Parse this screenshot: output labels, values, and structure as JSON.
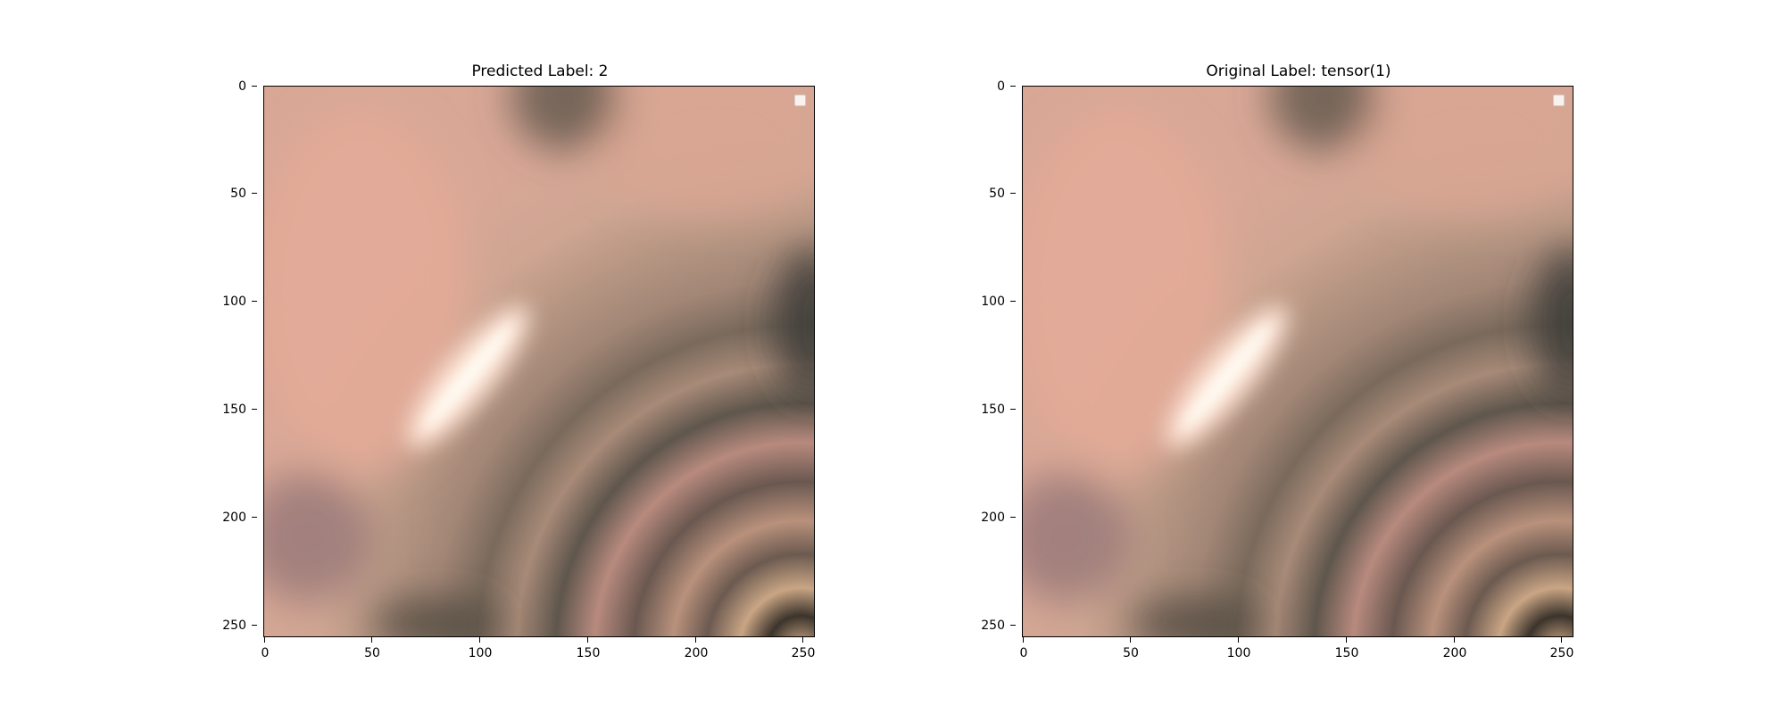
{
  "figure": {
    "panels": [
      {
        "title": "Predicted Label: 2",
        "x_ticks": [
          "0",
          "50",
          "100",
          "150",
          "200",
          "250"
        ],
        "y_ticks": [
          "0",
          "50",
          "100",
          "150",
          "200",
          "250"
        ],
        "legend": "empty"
      },
      {
        "title": "Original Label: tensor(1)",
        "x_ticks": [
          "0",
          "50",
          "100",
          "150",
          "200",
          "250"
        ],
        "y_ticks": [
          "0",
          "50",
          "100",
          "150",
          "200",
          "250"
        ],
        "legend": "empty"
      }
    ],
    "image_description_colors": {
      "skin_pink": "#e8a898",
      "dark_shadow": "#4e4a42",
      "highlight": "#fff6ea",
      "warm_tan": "#c9a888"
    }
  }
}
